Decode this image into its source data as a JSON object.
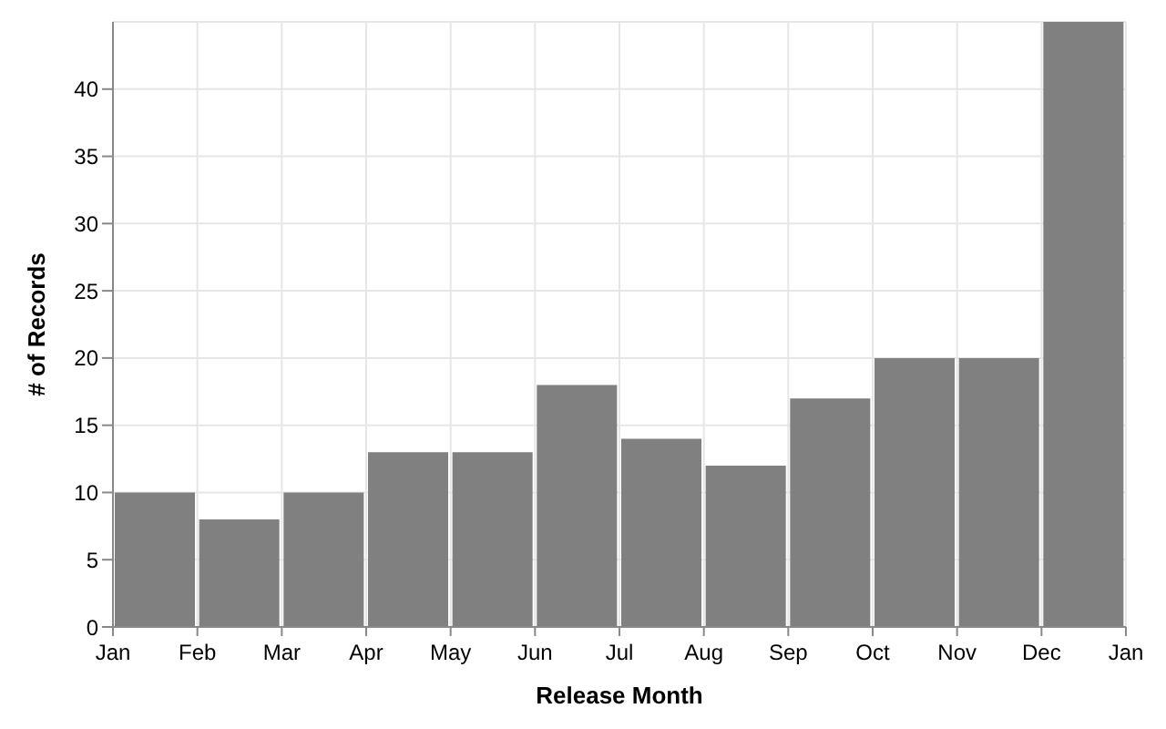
{
  "chart_data": {
    "type": "bar",
    "xlabel": "Release Month",
    "ylabel": "# of Records",
    "categories": [
      "Jan",
      "Feb",
      "Mar",
      "Apr",
      "May",
      "Jun",
      "Jul",
      "Aug",
      "Sep",
      "Oct",
      "Nov",
      "Dec"
    ],
    "values": [
      10,
      8,
      10,
      13,
      13,
      18,
      14,
      12,
      17,
      20,
      20,
      45
    ],
    "color": "#808080",
    "annotations": [
      "Jan"
    ],
    "ylim": [
      0,
      45
    ],
    "yticks": [
      0,
      5,
      10,
      15,
      20,
      25,
      30,
      35,
      40
    ],
    "grid": true
  }
}
